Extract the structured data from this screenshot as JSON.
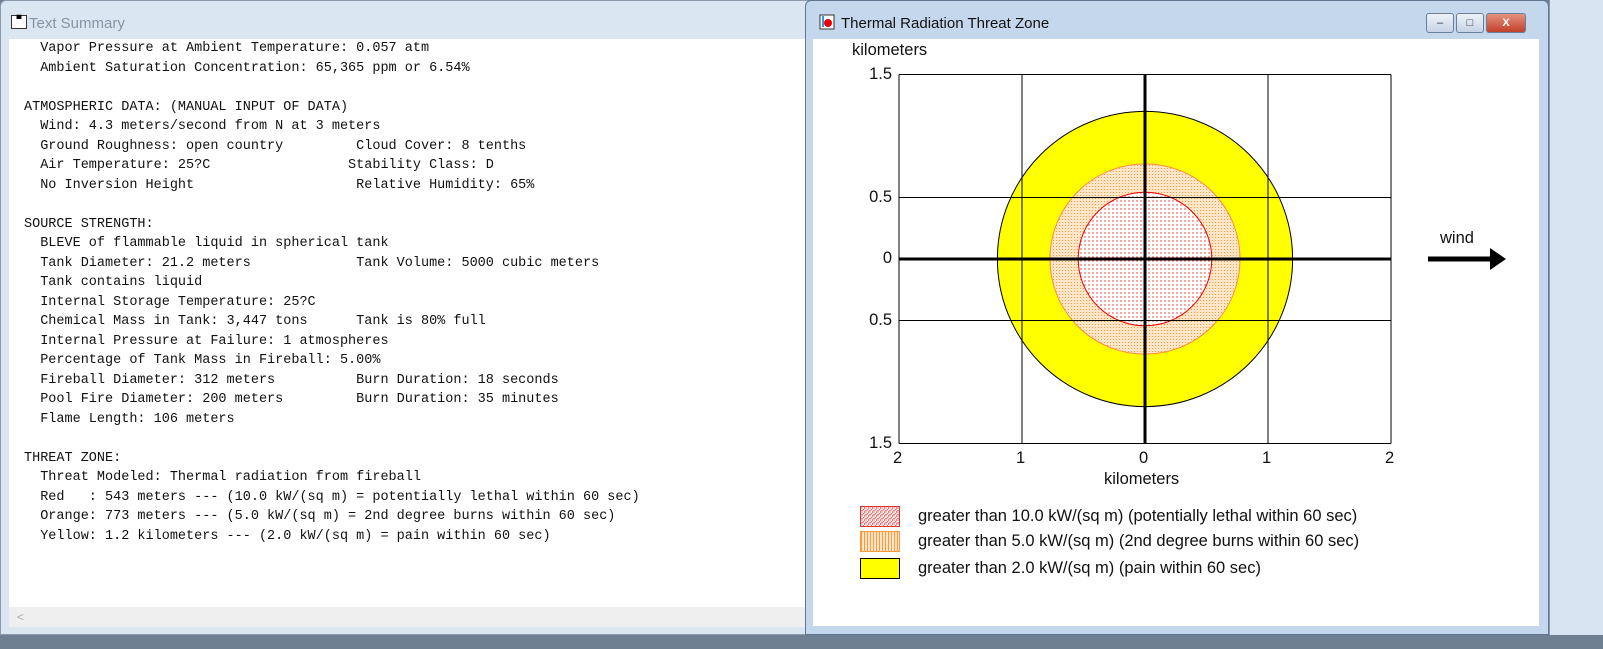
{
  "text_window": {
    "title": "Text Summary",
    "lines": [
      "  Vapor Pressure at Ambient Temperature: 0.057 atm",
      "  Ambient Saturation Concentration: 65,365 ppm or 6.54%",
      "",
      "ATMOSPHERIC DATA: (MANUAL INPUT OF DATA)",
      "  Wind: 4.3 meters/second from N at 3 meters",
      "  Ground Roughness: open country         Cloud Cover: 8 tenths",
      "  Air Temperature: 25?C                 Stability Class: D",
      "  No Inversion Height                    Relative Humidity: 65%",
      "",
      "SOURCE STRENGTH:",
      "  BLEVE of flammable liquid in spherical tank",
      "  Tank Diameter: 21.2 meters             Tank Volume: 5000 cubic meters",
      "  Tank contains liquid",
      "  Internal Storage Temperature: 25?C",
      "  Chemical Mass in Tank: 3,447 tons      Tank is 80% full",
      "  Internal Pressure at Failure: 1 atmospheres",
      "  Percentage of Tank Mass in Fireball: 5.00%",
      "  Fireball Diameter: 312 meters          Burn Duration: 18 seconds",
      "  Pool Fire Diameter: 200 meters         Burn Duration: 35 minutes",
      "  Flame Length: 106 meters",
      "",
      "THREAT ZONE:",
      "  Threat Modeled: Thermal radiation from fireball",
      "  Red   : 543 meters --- (10.0 kW/(sq m) = potentially lethal within 60 sec)",
      "  Orange: 773 meters --- (5.0 kW/(sq m) = 2nd degree burns within 60 sec)",
      "  Yellow: 1.2 kilometers --- (2.0 kW/(sq m) = pain within 60 sec)"
    ],
    "scroll_left": "<"
  },
  "plot_window": {
    "title": "Thermal Radiation Threat Zone",
    "buttons": {
      "minimize": "–",
      "maximize": "□",
      "close": "X"
    },
    "y_axis_label": "kilometers",
    "x_axis_label": "kilometers",
    "y_ticks": [
      "1.5",
      "0.5",
      "0",
      "0.5",
      "1.5"
    ],
    "x_ticks": [
      "2",
      "1",
      "0",
      "1",
      "2"
    ],
    "wind_label": "wind",
    "zones": [
      {
        "color": "#ffff00",
        "radius_km": 1.2,
        "legend": "greater than 2.0 kW/(sq m) (pain within 60 sec)"
      },
      {
        "color": "#ffa040",
        "radius_km": 0.773,
        "legend": "greater than 5.0 kW/(sq m) (2nd degree burns within 60 sec)"
      },
      {
        "color": "#ff0000",
        "radius_km": 0.543,
        "legend": "greater than 10.0 kW/(sq m) (potentially lethal within 60 sec)"
      }
    ]
  }
}
